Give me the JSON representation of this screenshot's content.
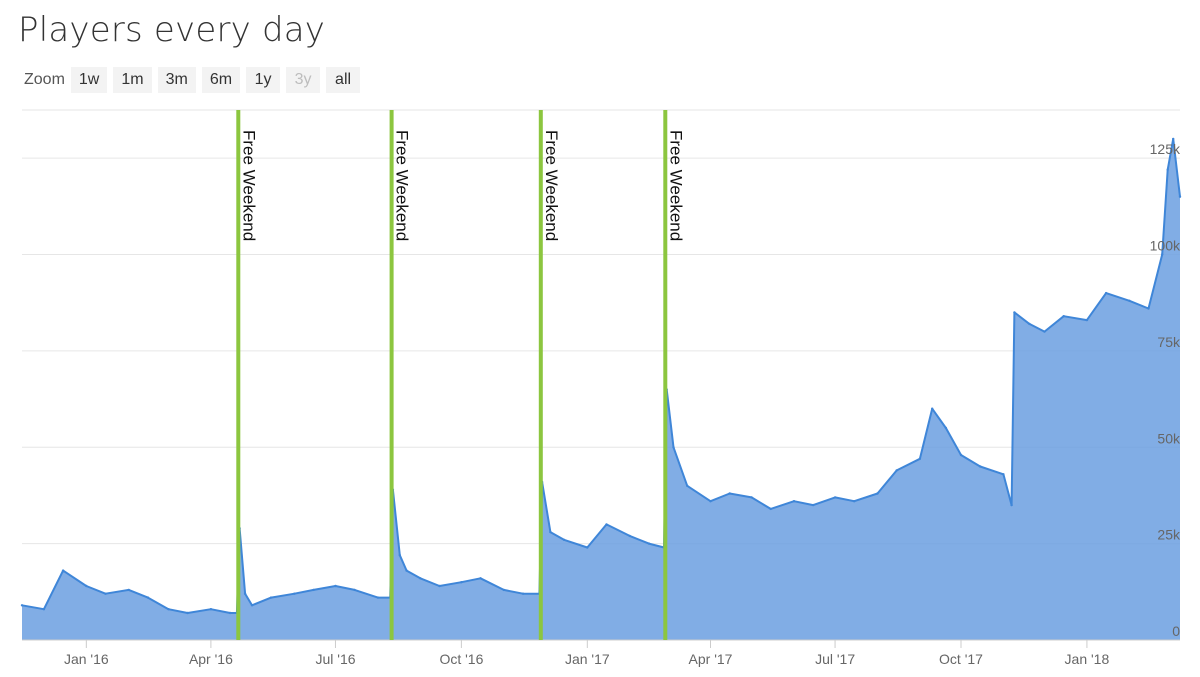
{
  "title": "Players every day",
  "zoom": {
    "label": "Zoom",
    "buttons": [
      {
        "label": "1w",
        "enabled": true
      },
      {
        "label": "1m",
        "enabled": true
      },
      {
        "label": "3m",
        "enabled": true
      },
      {
        "label": "6m",
        "enabled": true
      },
      {
        "label": "1y",
        "enabled": true
      },
      {
        "label": "3y",
        "enabled": false
      },
      {
        "label": "all",
        "enabled": true
      }
    ]
  },
  "colors": {
    "series_line": "#3f86d8",
    "series_fill": "#6b9fe0",
    "plot_band": "#8cc63f",
    "grid": "#e6e6e6"
  },
  "chart_data": {
    "type": "area",
    "xlim": [
      "2015-11-15",
      "2018-03-10"
    ],
    "ylim": [
      0,
      137500
    ],
    "y_ticks": [
      0,
      25000,
      50000,
      75000,
      100000,
      125000
    ],
    "y_tick_labels": [
      "0",
      "25k",
      "50k",
      "75k",
      "100k",
      "125k"
    ],
    "x_ticks": [
      "2016-01-01",
      "2016-04-01",
      "2016-07-01",
      "2016-10-01",
      "2017-01-01",
      "2017-04-01",
      "2017-07-01",
      "2017-10-01",
      "2018-01-01"
    ],
    "x_tick_labels": [
      "Jan '16",
      "Apr '16",
      "Jul '16",
      "Oct '16",
      "Jan '17",
      "Apr '17",
      "Jul '17",
      "Oct '17",
      "Jan '18"
    ],
    "grid": true,
    "plot_bands": [
      {
        "date": "2016-04-21",
        "label": "Free Weekend"
      },
      {
        "date": "2016-08-11",
        "label": "Free Weekend"
      },
      {
        "date": "2016-11-28",
        "label": "Free Weekend"
      },
      {
        "date": "2017-02-27",
        "label": "Free Weekend"
      }
    ],
    "series": [
      {
        "x": [
          "2015-11-15",
          "2015-12-01",
          "2015-12-15",
          "2016-01-01",
          "2016-01-15",
          "2016-02-01",
          "2016-02-15",
          "2016-03-01",
          "2016-03-15",
          "2016-04-01",
          "2016-04-15",
          "2016-04-20",
          "2016-04-22",
          "2016-04-26",
          "2016-05-01",
          "2016-05-15",
          "2016-06-01",
          "2016-06-15",
          "2016-07-01",
          "2016-07-15",
          "2016-08-01",
          "2016-08-10",
          "2016-08-12",
          "2016-08-17",
          "2016-08-22",
          "2016-09-01",
          "2016-09-15",
          "2016-10-01",
          "2016-10-15",
          "2016-11-01",
          "2016-11-15",
          "2016-11-27",
          "2016-11-29",
          "2016-12-05",
          "2016-12-15",
          "2017-01-01",
          "2017-01-15",
          "2017-02-01",
          "2017-02-15",
          "2017-02-26",
          "2017-02-28",
          "2017-03-05",
          "2017-03-15",
          "2017-04-01",
          "2017-04-15",
          "2017-05-01",
          "2017-05-15",
          "2017-06-01",
          "2017-06-15",
          "2017-07-01",
          "2017-07-15",
          "2017-08-01",
          "2017-08-15",
          "2017-09-01",
          "2017-09-10",
          "2017-09-20",
          "2017-10-01",
          "2017-10-15",
          "2017-11-01",
          "2017-11-07",
          "2017-11-09",
          "2017-11-20",
          "2017-12-01",
          "2017-12-15",
          "2018-01-01",
          "2018-01-15",
          "2018-02-01",
          "2018-02-15",
          "2018-02-25",
          "2018-03-01",
          "2018-03-05",
          "2018-03-10"
        ],
        "values": [
          9000,
          8000,
          18000,
          14000,
          12000,
          13000,
          11000,
          8000,
          7000,
          8000,
          7000,
          7000,
          29000,
          12000,
          9000,
          11000,
          12000,
          13000,
          14000,
          13000,
          11000,
          11000,
          39000,
          22000,
          18000,
          16000,
          14000,
          15000,
          16000,
          13000,
          12000,
          12000,
          41000,
          28000,
          26000,
          24000,
          30000,
          27000,
          25000,
          24000,
          65000,
          50000,
          40000,
          36000,
          38000,
          37000,
          34000,
          36000,
          35000,
          37000,
          36000,
          38000,
          44000,
          47000,
          60000,
          55000,
          48000,
          45000,
          43000,
          35000,
          85000,
          82000,
          80000,
          84000,
          83000,
          90000,
          88000,
          86000,
          100000,
          122000,
          130000,
          115000
        ]
      }
    ]
  }
}
